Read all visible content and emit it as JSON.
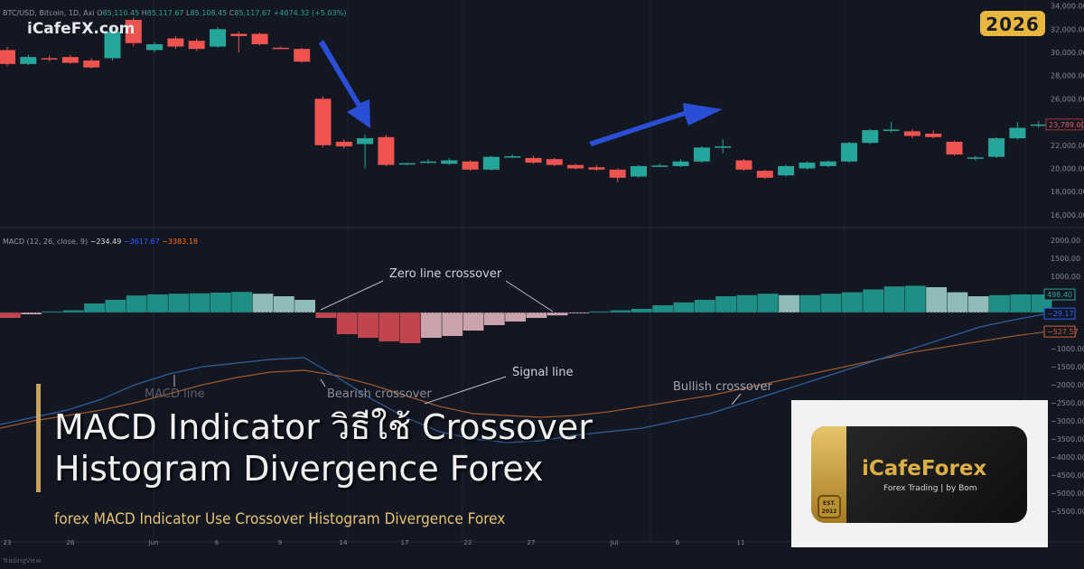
{
  "header": {
    "symbol": "BTC/USD, Bitcoin, 1D, Axi",
    "o_label": "O",
    "o": "85,110.45",
    "h_label": "H",
    "h": "85,117.67",
    "l_label": "L",
    "l": "85,108.45",
    "c_label": "C",
    "c": "85,117.67",
    "change": "+4074.32 (+5.03%)"
  },
  "watermark": "iCafeFX.com",
  "year_badge": "2026",
  "macd_header": {
    "label": "MACD (12, 26, close, 9)",
    "hist": "−234.49",
    "macd": "−3617.67",
    "signal": "−3383.18"
  },
  "title_line1": "MACD Indicator วิธีใช้ Crossover",
  "title_line2": "Histogram Divergence Forex",
  "subtitle": "forex MACD Indicator Use Crossover Histogram Divergence Forex",
  "logo": {
    "name": "iCafeForex",
    "tagline": "Forex Trading | by Bom",
    "est": "EST. 2012"
  },
  "footer": "TradingView",
  "colors": {
    "bg": "#131722",
    "up": "#26a69a",
    "down": "#ef5350",
    "macd": "#2962ff",
    "signal": "#ff6d00",
    "arrow": "#2a4fd6",
    "gold": "#e8b73f"
  },
  "annotations": {
    "zero": "Zero line crossover",
    "signal": "Signal line",
    "bearish": "Bearish crossover",
    "macd": "MACD line",
    "bullish": "Bullish crossover"
  },
  "price_axis": {
    "ticks": [
      "34,000.00",
      "32,000.00",
      "30,000.00",
      "28,000.00",
      "26,000.00",
      "24,000.00",
      "22,000.00",
      "20,000.00",
      "18,000.00",
      "16,000.00"
    ],
    "last_price": "23,789.00"
  },
  "macd_axis": {
    "ticks": [
      "2000.00",
      "1500.00",
      "1000.00",
      "−1000.00",
      "−1500.00",
      "−2000.00",
      "−2500.00",
      "−3000.00",
      "−3500.00",
      "−4000.00",
      "−4500.00",
      "−5000.00",
      "−5500.00"
    ],
    "hist_label": "498.40",
    "macd_label": "−29.17",
    "signal_label": "−527.57"
  },
  "time_axis": [
    "23",
    "26",
    "Jun",
    "6",
    "9",
    "14",
    "17",
    "22",
    "27",
    "Jul",
    "6",
    "11"
  ],
  "chart_data": {
    "type": "candlestick",
    "ohlc": [
      [
        30200,
        30500,
        28800,
        29000
      ],
      [
        29000,
        29800,
        28900,
        29600
      ],
      [
        29500,
        29700,
        29200,
        29400
      ],
      [
        29600,
        29800,
        29000,
        29100
      ],
      [
        29300,
        29500,
        28600,
        28700
      ],
      [
        29500,
        32200,
        29300,
        31800
      ],
      [
        32800,
        33000,
        30500,
        30800
      ],
      [
        30200,
        30900,
        30000,
        30700
      ],
      [
        31200,
        31400,
        30300,
        30500
      ],
      [
        31000,
        31200,
        30100,
        30300
      ],
      [
        30500,
        32200,
        30400,
        32000
      ],
      [
        31600,
        31800,
        30000,
        31400
      ],
      [
        31600,
        31700,
        30600,
        30700
      ],
      [
        30400,
        30500,
        30300,
        30350
      ],
      [
        30300,
        30400,
        29100,
        29200
      ],
      [
        26000,
        26200,
        21800,
        22000
      ],
      [
        22300,
        22500,
        21700,
        21900
      ],
      [
        22100,
        22900,
        20000,
        22600
      ],
      [
        22700,
        22900,
        20200,
        20300
      ],
      [
        20400,
        20500,
        20300,
        20450
      ],
      [
        20500,
        20800,
        20400,
        20600
      ],
      [
        20400,
        20900,
        20300,
        20700
      ],
      [
        20600,
        20700,
        19800,
        19900
      ],
      [
        19900,
        21100,
        19800,
        21000
      ],
      [
        21000,
        21200,
        20900,
        21050
      ],
      [
        20900,
        21100,
        20400,
        20500
      ],
      [
        20800,
        20900,
        20200,
        20300
      ],
      [
        20300,
        20400,
        19900,
        20000
      ],
      [
        20100,
        20300,
        19800,
        19900
      ],
      [
        19900,
        20000,
        18800,
        19200
      ],
      [
        19300,
        20300,
        19200,
        20200
      ],
      [
        20200,
        20400,
        20100,
        20250
      ],
      [
        20200,
        20800,
        20100,
        20600
      ],
      [
        20600,
        21900,
        20500,
        21800
      ],
      [
        21900,
        22500,
        21300,
        21900
      ],
      [
        20700,
        20800,
        19800,
        19900
      ],
      [
        19800,
        19900,
        19100,
        19200
      ],
      [
        19400,
        20300,
        19300,
        20200
      ],
      [
        20000,
        20600,
        19900,
        20500
      ],
      [
        20200,
        20700,
        20100,
        20600
      ],
      [
        20600,
        22300,
        20500,
        22200
      ],
      [
        22200,
        23400,
        22100,
        23300
      ],
      [
        23300,
        24000,
        23100,
        23350
      ],
      [
        23200,
        23400,
        22600,
        22800
      ],
      [
        23000,
        23300,
        22600,
        22700
      ],
      [
        22300,
        22400,
        21100,
        21200
      ],
      [
        20900,
        21100,
        20700,
        20950
      ],
      [
        21000,
        22700,
        20900,
        22600
      ],
      [
        22600,
        24000,
        22500,
        23500
      ],
      [
        23789,
        24100,
        23500,
        23789
      ]
    ],
    "macd_hist": [
      -150,
      -50,
      30,
      60,
      250,
      350,
      470,
      500,
      520,
      530,
      550,
      570,
      520,
      450,
      350,
      -150,
      -600,
      -700,
      -800,
      -850,
      -700,
      -650,
      -500,
      -350,
      -250,
      -150,
      -80,
      -10,
      30,
      60,
      100,
      200,
      280,
      350,
      450,
      480,
      520,
      480,
      480,
      520,
      560,
      640,
      720,
      740,
      700,
      560,
      450,
      480,
      500,
      500
    ],
    "macd_line": [
      -3100,
      -2900,
      -2700,
      -2400,
      -2000,
      -1700,
      -1500,
      -1400,
      -1300,
      -1250,
      -1800,
      -2400,
      -2900,
      -3300,
      -3500,
      -3600,
      -3550,
      -3400,
      -3300,
      -3200,
      -3000,
      -2800,
      -2500,
      -2200,
      -1900,
      -1600,
      -1300,
      -1000,
      -700,
      -400,
      -200,
      -29
    ],
    "signal_line": [
      -3200,
      -3000,
      -2850,
      -2700,
      -2500,
      -2250,
      -2000,
      -1800,
      -1650,
      -1600,
      -1750,
      -2000,
      -2300,
      -2600,
      -2800,
      -2850,
      -2900,
      -2850,
      -2750,
      -2600,
      -2450,
      -2300,
      -2100,
      -1900,
      -1700,
      -1500,
      -1300,
      -1100,
      -950,
      -800,
      -650,
      -528
    ],
    "ylim_price": [
      15000,
      34500
    ],
    "ylim_macd": [
      -5800,
      2200
    ]
  }
}
